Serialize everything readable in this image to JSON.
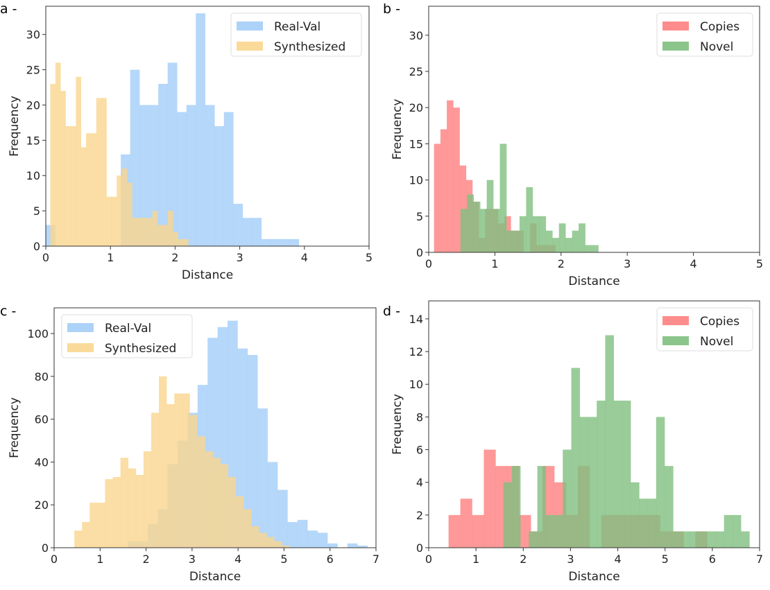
{
  "chart_data": [
    {
      "id": "a",
      "type": "bar",
      "subtype": "histogram",
      "panel_label": "a -",
      "xlabel": "Distance",
      "ylabel": "Frequency",
      "xlim": [
        0,
        5
      ],
      "ylim": [
        0,
        34
      ],
      "xticks": [
        0,
        1,
        2,
        3,
        4,
        5
      ],
      "yticks": [
        0,
        5,
        10,
        15,
        20,
        25,
        30
      ],
      "legend_position": "top-right",
      "series": [
        {
          "name": "Real-Val",
          "color": "#a3cdf7",
          "bin_start": 0.0,
          "bin_width": 0.145,
          "values": [
            3,
            0,
            0,
            0,
            0,
            0,
            0,
            0,
            13,
            25,
            20,
            20,
            23,
            26,
            19,
            20,
            33,
            20,
            17,
            19,
            6,
            4,
            4,
            1,
            1,
            1,
            1,
            0,
            0,
            0
          ]
        },
        {
          "name": "Synthesized",
          "color": "#fad68e",
          "bin_start": 0.07,
          "bin_width": 0.079,
          "values": [
            23,
            26,
            22,
            17,
            17,
            24,
            14,
            16,
            16,
            21,
            21,
            7,
            7,
            10,
            11,
            9,
            4,
            4,
            4,
            4,
            5,
            3,
            3,
            5,
            2,
            1,
            1,
            0,
            0,
            0
          ]
        }
      ]
    },
    {
      "id": "b",
      "type": "bar",
      "subtype": "histogram",
      "panel_label": "b -",
      "xlabel": "Distance",
      "ylabel": "Frequency",
      "xlim": [
        0,
        5
      ],
      "ylim": [
        0,
        34
      ],
      "xticks": [
        0,
        1,
        2,
        3,
        4,
        5
      ],
      "yticks": [
        0,
        5,
        10,
        15,
        20,
        25,
        30
      ],
      "legend_position": "top-right",
      "series": [
        {
          "name": "Copies",
          "color": "#ff8080",
          "bin_start": 0.08,
          "bin_width": 0.0967,
          "values": [
            15,
            17,
            21,
            20,
            12,
            10,
            7,
            2,
            6,
            6,
            4,
            5,
            3,
            3,
            0,
            4,
            1,
            1,
            1,
            0
          ]
        },
        {
          "name": "Novel",
          "color": "#7fbf7f",
          "bin_start": 0.48,
          "bin_width": 0.0992,
          "values": [
            6,
            8,
            7,
            6,
            10,
            6,
            15,
            3,
            3,
            5,
            9,
            5,
            5,
            3,
            2,
            4,
            2,
            3,
            4,
            1,
            1
          ]
        }
      ]
    },
    {
      "id": "c",
      "type": "bar",
      "subtype": "histogram",
      "panel_label": "c -",
      "xlabel": "Distance",
      "ylabel": "Frequency",
      "xlim": [
        0,
        7
      ],
      "ylim": [
        0,
        112
      ],
      "xticks": [
        0,
        1,
        2,
        3,
        4,
        5,
        6,
        7
      ],
      "yticks": [
        0,
        20,
        40,
        60,
        80,
        100
      ],
      "legend_position": "top-left",
      "series": [
        {
          "name": "Real-Val",
          "color": "#a3cdf7",
          "bin_start": 1.6,
          "bin_width": 0.2172,
          "values": [
            3,
            3,
            11,
            18,
            39,
            50,
            63,
            76,
            98,
            103,
            106,
            93,
            90,
            65,
            40,
            27,
            12,
            13,
            8,
            7,
            2,
            0,
            2,
            1
          ]
        },
        {
          "name": "Synthesized",
          "color": "#fad68e",
          "bin_start": 0.44,
          "bin_width": 0.1672,
          "values": [
            8,
            12,
            21,
            21,
            32,
            33,
            42,
            37,
            34,
            45,
            63,
            80,
            67,
            72,
            72,
            62,
            52,
            45,
            42,
            39,
            33,
            24,
            18,
            10,
            7,
            5,
            3,
            1,
            0
          ]
        }
      ]
    },
    {
      "id": "d",
      "type": "bar",
      "subtype": "histogram",
      "panel_label": "d -",
      "xlabel": "Distance",
      "ylabel": "Frequency",
      "xlim": [
        0,
        7
      ],
      "ylim": [
        0,
        15.1
      ],
      "xticks": [
        0,
        1,
        2,
        3,
        4,
        5,
        6,
        7
      ],
      "yticks": [
        0,
        2,
        4,
        6,
        8,
        10,
        12,
        14
      ],
      "legend_position": "top-right",
      "series": [
        {
          "name": "Copies",
          "color": "#ff8080",
          "bin_start": 0.42,
          "bin_width": 0.2486,
          "values": [
            2,
            3,
            2,
            6,
            5,
            5,
            2,
            1,
            5,
            4,
            2,
            5,
            0,
            2,
            2,
            2,
            2,
            2,
            1,
            1,
            0,
            1,
            0
          ]
        },
        {
          "name": "Novel",
          "color": "#7fbf7f",
          "bin_start": 1.58,
          "bin_width": 0.1795,
          "values": [
            4,
            5,
            0,
            1,
            5,
            2,
            2,
            6,
            11,
            8,
            8,
            9,
            13,
            9,
            9,
            4,
            3,
            3,
            8,
            5,
            1,
            1,
            1,
            1,
            1,
            1,
            2,
            2,
            1
          ]
        }
      ]
    }
  ]
}
